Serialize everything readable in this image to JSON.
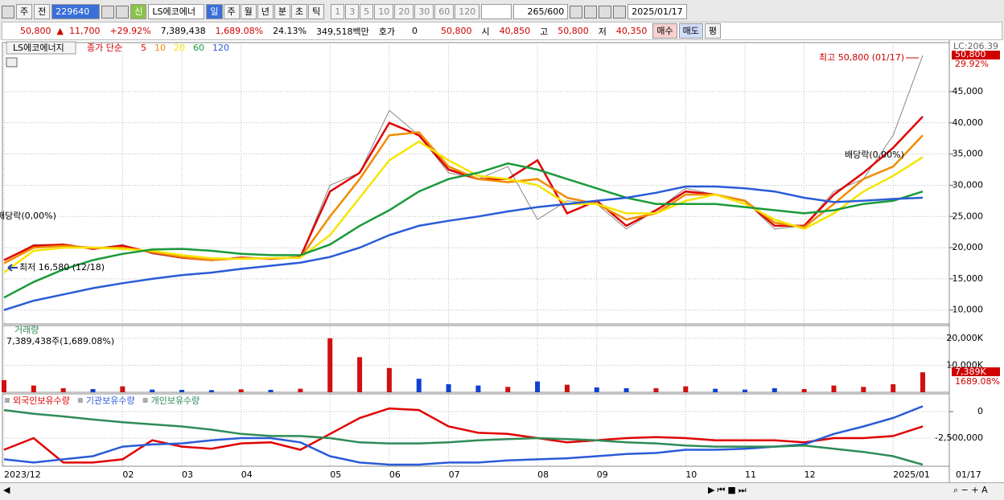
{
  "toolbar": {
    "market": "주",
    "scope": "전",
    "code": "229640",
    "badge": "신",
    "name": "LS에코에너",
    "periods": [
      "일",
      "주",
      "월",
      "년",
      "분",
      "초",
      "틱"
    ],
    "intervals": [
      "1",
      "3",
      "5",
      "10",
      "20",
      "30",
      "60",
      "120"
    ],
    "count": "265",
    "total": "/600",
    "date": "2025/01/17"
  },
  "quote": {
    "price": "50,800",
    "change": "11,700",
    "change_rate": "+29.92%",
    "volume": "7,389,438",
    "volume_rate": "1,689.08%",
    "turnover": "24.13%",
    "amount": "349,518백만",
    "ask_label": "호가",
    "ask": "0",
    "ask_price": "50,800",
    "open_label": "시",
    "open": "40,850",
    "high_label": "고",
    "high": "50,800",
    "low_label": "저",
    "low": "40,350",
    "buy": "매수",
    "sell": "매도",
    "avg": "평"
  },
  "chart_data": [
    {
      "type": "line",
      "name": "LS에코에너지",
      "legend_label": "종가 단순",
      "ylim": [
        7900,
        52600
      ],
      "yticks": [
        {
          "value": 10000,
          "label": "10,000"
        },
        {
          "value": 15000,
          "label": "15,000"
        },
        {
          "value": 20000,
          "label": "20,000"
        },
        {
          "value": 25000,
          "label": "25,000"
        },
        {
          "value": 30000,
          "label": "30,000"
        },
        {
          "value": 35000,
          "label": "35,000"
        },
        {
          "value": 40000,
          "label": "40,000"
        },
        {
          "value": 45000,
          "label": "45,000"
        }
      ],
      "grid": true,
      "close": {
        "color": "#555555",
        "values": [
          18000,
          20500,
          20500,
          19800,
          20500,
          19000,
          18300,
          18000,
          18500,
          18200,
          18500,
          30000,
          32000,
          42000,
          38000,
          32000,
          31000,
          33000,
          24500,
          27500,
          27000,
          23000,
          26000,
          29500,
          28500,
          27500,
          23000,
          23500,
          29000,
          31000,
          38000,
          50800
        ]
      },
      "series": [
        {
          "name": "5",
          "color": "#e00000",
          "values": [
            18000,
            20300,
            20500,
            19800,
            20300,
            19200,
            18400,
            18000,
            18400,
            18200,
            18500,
            29000,
            32000,
            40000,
            38000,
            32500,
            31000,
            31000,
            34000,
            25500,
            27500,
            23500,
            26000,
            29000,
            28500,
            27500,
            23500,
            23500,
            28500,
            32000,
            36000,
            41000
          ]
        },
        {
          "name": "10",
          "color": "#f08c00",
          "values": [
            17500,
            20000,
            20300,
            20000,
            20000,
            19300,
            18500,
            18000,
            18300,
            18300,
            18400,
            25000,
            31000,
            38000,
            38500,
            33000,
            31000,
            30500,
            31000,
            28000,
            27000,
            24500,
            25500,
            28500,
            28500,
            27500,
            24000,
            23300,
            27000,
            31000,
            33000,
            38000
          ]
        },
        {
          "name": "20",
          "color": "#f5e400",
          "values": [
            16000,
            19500,
            20000,
            20000,
            19800,
            19500,
            18800,
            18300,
            18200,
            18300,
            18400,
            22000,
            28000,
            34000,
            37000,
            34000,
            31500,
            31000,
            30000,
            27000,
            27000,
            25500,
            25500,
            27500,
            28500,
            27000,
            24500,
            23000,
            25500,
            29000,
            31500,
            34500
          ]
        },
        {
          "name": "60",
          "color": "#1a9a3a",
          "values": [
            12000,
            14500,
            16500,
            18000,
            19000,
            19700,
            19800,
            19500,
            19000,
            18800,
            18800,
            20500,
            23500,
            26000,
            29000,
            31000,
            32000,
            33500,
            32500,
            31000,
            29500,
            28000,
            27000,
            27000,
            27000,
            26500,
            26000,
            25500,
            26000,
            27000,
            27500,
            29000
          ]
        },
        {
          "name": "120",
          "color": "#2a5bd7",
          "values": [
            10000,
            11500,
            12500,
            13500,
            14300,
            15000,
            15600,
            16000,
            16600,
            17100,
            17600,
            18500,
            20000,
            22000,
            23500,
            24300,
            25000,
            25800,
            26500,
            27000,
            27500,
            28000,
            28800,
            29800,
            29800,
            29500,
            29000,
            28000,
            27300,
            27500,
            27800,
            28000
          ]
        }
      ],
      "high_label": "최고 50,800 (01/17)",
      "low_label": "최저 16,580 (12/18)",
      "dividend_labels": [
        "배당락(0,00%)",
        "배당락(0,00%)"
      ],
      "right_labels": {
        "lc": "LC:206.39",
        "last": "50,800",
        "rate": "29.92%"
      }
    },
    {
      "type": "bar",
      "title": "거래량",
      "subtitle": "7,389,438주(1,689.08%)",
      "up_color": "#d01010",
      "down_color": "#1040d0",
      "values": [
        4500,
        2500,
        1500,
        1200,
        2200,
        1000,
        900,
        800,
        1100,
        900,
        1300,
        20000,
        13000,
        9000,
        5000,
        3000,
        2500,
        2000,
        4000,
        2800,
        1800,
        1500,
        1500,
        2200,
        1300,
        1000,
        1500,
        1200,
        2500,
        2000,
        3000,
        7389
      ],
      "ylim": [
        0,
        24700
      ],
      "yticks": [
        {
          "value": 10000,
          "label": "10,000K"
        },
        {
          "value": 20000,
          "label": "20,000K"
        }
      ],
      "last_label": "7,389K",
      "last_ratio": "1689.08%"
    },
    {
      "type": "line",
      "categories": [
        "2023/12",
        null,
        null,
        null,
        "02",
        null,
        "03",
        null,
        "04",
        null,
        null,
        "05",
        null,
        "06",
        null,
        "07",
        null,
        null,
        "08",
        null,
        "09",
        null,
        null,
        "10",
        null,
        "11",
        null,
        "12",
        null,
        null,
        "2025/01",
        null
      ],
      "last_date": "01/17",
      "ylim": [
        -5150000,
        1670000
      ],
      "yticks": [
        0,
        {
          "value": -2500000,
          "label": "-2,500,000"
        }
      ],
      "series": [
        {
          "name": "외국인보유수량",
          "color": "#e00000",
          "values": [
            -3600000,
            -2500000,
            -4800000,
            -4800000,
            -4500000,
            -2700000,
            -3300000,
            -3500000,
            -3000000,
            -2900000,
            -3600000,
            -2100000,
            -600000,
            300000,
            150000,
            -1400000,
            -2000000,
            -2100000,
            -2500000,
            -2900000,
            -2700000,
            -2500000,
            -2400000,
            -2500000,
            -2700000,
            -2700000,
            -2700000,
            -2900000,
            -2500000,
            -2500000,
            -2300000,
            -1400000
          ]
        },
        {
          "name": "기관보유수량",
          "color": "#2a5bd7",
          "values": [
            -4500000,
            -4800000,
            -4500000,
            -4200000,
            -3300000,
            -3100000,
            -3000000,
            -2700000,
            -2500000,
            -2500000,
            -2900000,
            -4200000,
            -4800000,
            -5000000,
            -5000000,
            -4800000,
            -4800000,
            -4600000,
            -4500000,
            -4400000,
            -4200000,
            -4000000,
            -3900000,
            -3600000,
            -3600000,
            -3500000,
            -3300000,
            -3100000,
            -2100000,
            -1400000,
            -600000,
            500000
          ]
        },
        {
          "name": "개인보유수량",
          "color": "#2e8b57",
          "values": [
            150000,
            -200000,
            -450000,
            -750000,
            -1000000,
            -1200000,
            -1400000,
            -1700000,
            -2100000,
            -2300000,
            -2300000,
            -2500000,
            -2900000,
            -3000000,
            -3000000,
            -2900000,
            -2700000,
            -2600000,
            -2500000,
            -2600000,
            -2700000,
            -2900000,
            -3000000,
            -3200000,
            -3300000,
            -3300000,
            -3300000,
            -3200000,
            -3500000,
            -3800000,
            -4200000,
            -5000000
          ]
        }
      ]
    }
  ]
}
